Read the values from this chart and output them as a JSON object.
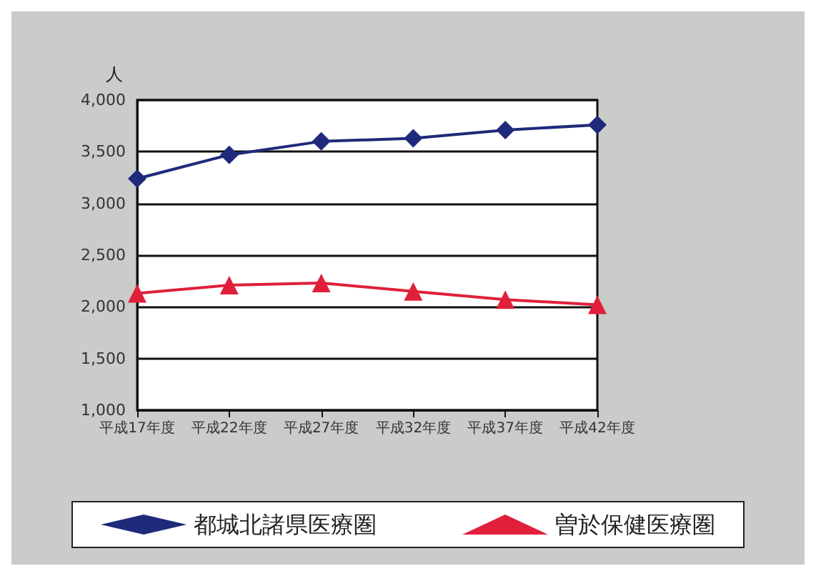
{
  "chart_data": {
    "type": "line",
    "ylabel": "人",
    "categories": [
      "平成17年度",
      "平成22年度",
      "平成27年度",
      "平成32年度",
      "平成37年度",
      "平成42年度"
    ],
    "series": [
      {
        "name": "都城北諸県医療圏",
        "color": "#1f2a7a",
        "marker": "diamond",
        "values": [
          3240,
          3470,
          3600,
          3630,
          3710,
          3760
        ]
      },
      {
        "name": "曽於保健医療圏",
        "color": "#e0203a",
        "marker": "triangle",
        "values": [
          2130,
          2210,
          2230,
          2150,
          2070,
          2020
        ]
      }
    ],
    "ylim": [
      1000,
      4000
    ],
    "yticks": [
      {
        "value": 1000,
        "label": "1,000"
      },
      {
        "value": 1500,
        "label": "1,500"
      },
      {
        "value": 2000,
        "label": "2,000"
      },
      {
        "value": 2500,
        "label": "2,500"
      },
      {
        "value": 3000,
        "label": "3,000"
      },
      {
        "value": 3500,
        "label": "3,500"
      },
      {
        "value": 4000,
        "label": "4,000"
      }
    ],
    "grid": "y",
    "legend": "bottom"
  }
}
